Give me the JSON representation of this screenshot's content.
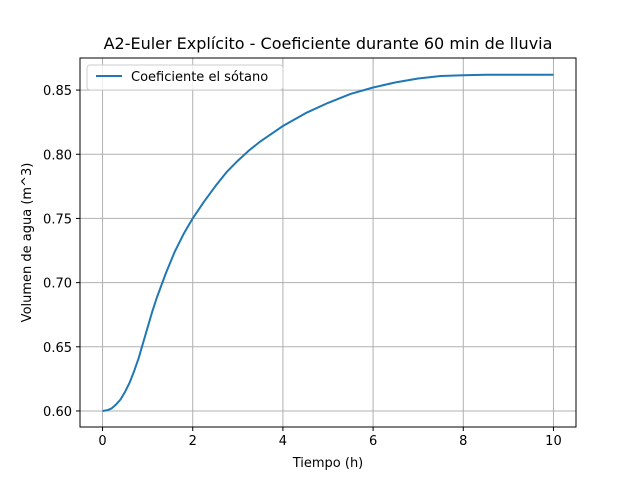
{
  "chart_data": {
    "type": "line",
    "title": "A2-Euler Explícito - Coeficiente durante 60 min de lluvia",
    "xlabel": "Tiempo (h)",
    "ylabel": "Volumen de agua (m^3)",
    "xlim": [
      -0.5,
      10.5
    ],
    "ylim": [
      0.5875,
      0.875
    ],
    "xticks": [
      0,
      2,
      4,
      6,
      8,
      10
    ],
    "xtick_labels": [
      "0",
      "2",
      "4",
      "6",
      "8",
      "10"
    ],
    "yticks": [
      0.6,
      0.65,
      0.7,
      0.75,
      0.8,
      0.85
    ],
    "ytick_labels": [
      "0.60",
      "0.65",
      "0.70",
      "0.75",
      "0.80",
      "0.85"
    ],
    "grid": true,
    "legend_position": "upper-left",
    "series": [
      {
        "name": "Coeficiente el sótano",
        "color": "#1f77b4",
        "x": [
          0,
          0.1,
          0.2,
          0.3,
          0.4,
          0.5,
          0.6,
          0.7,
          0.8,
          0.9,
          1.0,
          1.1,
          1.2,
          1.4,
          1.6,
          1.8,
          2.0,
          2.25,
          2.5,
          2.75,
          3.0,
          3.25,
          3.5,
          4.0,
          4.5,
          5.0,
          5.5,
          6.0,
          6.5,
          7.0,
          7.5,
          8.0,
          8.5,
          9.0,
          9.5,
          10.0
        ],
        "y": [
          0.6,
          0.6005,
          0.602,
          0.605,
          0.609,
          0.615,
          0.622,
          0.631,
          0.641,
          0.653,
          0.665,
          0.677,
          0.688,
          0.707,
          0.724,
          0.738,
          0.75,
          0.763,
          0.775,
          0.786,
          0.795,
          0.803,
          0.81,
          0.822,
          0.832,
          0.84,
          0.847,
          0.852,
          0.856,
          0.859,
          0.861,
          0.8615,
          0.862,
          0.862,
          0.862,
          0.862
        ]
      }
    ]
  }
}
